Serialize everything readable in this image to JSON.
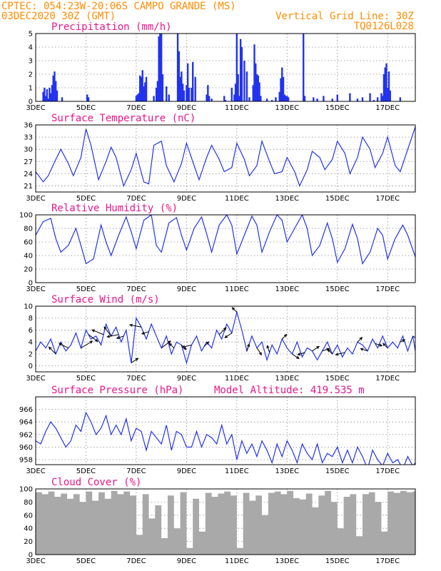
{
  "header": {
    "line1_left": "CPTEC:  054:23W-20:06S  CAMPO GRANDE (MS)",
    "line2_left": "03DEC2020 30Z (GMT)",
    "line2_right": "Vertical Grid Line: 30Z",
    "line3_right": "TQ0126L028"
  },
  "colors": {
    "header": "#ff8c00",
    "panel_title": "#e8178a",
    "series": "#2233ee",
    "cloud": "#a9a9a9"
  },
  "chart_data": [
    {
      "type": "bar",
      "title": "Precipitation (mm/h)",
      "ylim": [
        0,
        5
      ],
      "yticks": [
        "0",
        "1",
        "2",
        "3",
        "4",
        "5"
      ],
      "x_range_days": [
        3,
        18.1
      ],
      "xticks": [
        "3DEC",
        "5DEC",
        "7DEC",
        "9DEC",
        "11DEC",
        "13DEC",
        "15DEC",
        "17DEC"
      ],
      "grid": true,
      "x": [
        3.3,
        3.35,
        3.4,
        3.45,
        3.5,
        3.55,
        3.6,
        3.65,
        3.7,
        3.75,
        3.8,
        3.85,
        4.05,
        5.05,
        5.1,
        7.0,
        7.05,
        7.1,
        7.15,
        7.2,
        7.25,
        7.3,
        7.35,
        7.4,
        7.7,
        7.8,
        7.85,
        7.9,
        7.95,
        8.0,
        8.05,
        8.2,
        8.3,
        8.65,
        8.7,
        8.75,
        8.8,
        8.85,
        8.9,
        9.0,
        9.05,
        9.1,
        9.2,
        9.25,
        9.35,
        9.8,
        9.85,
        9.9,
        10.0,
        10.5,
        10.55,
        10.8,
        10.9,
        10.95,
        11.0,
        11.05,
        11.1,
        11.15,
        11.2,
        11.3,
        11.4,
        11.5,
        11.65,
        11.7,
        11.75,
        11.8,
        11.85,
        11.9,
        11.95,
        12.2,
        12.4,
        12.55,
        12.7,
        12.75,
        12.8,
        12.85,
        12.9,
        12.95,
        13.0,
        13.05,
        13.65,
        13.7,
        14.05,
        14.2,
        14.45,
        14.8,
        15.0,
        15.5,
        15.8,
        16.0,
        16.3,
        16.45,
        16.6,
        16.75,
        16.8,
        16.85,
        16.9,
        16.95,
        17.0,
        17.05,
        17.1,
        17.5
      ],
      "values": [
        0.7,
        1.0,
        0.4,
        0.9,
        0.2,
        1.0,
        0.6,
        1.2,
        1.9,
        2.2,
        1.5,
        0.8,
        0.3,
        0.5,
        0.3,
        0.4,
        0.5,
        0.6,
        1.9,
        1.8,
        2.3,
        1.1,
        1.4,
        1.8,
        0.4,
        1.0,
        1.5,
        4.8,
        5.0,
        5.0,
        2.0,
        1.1,
        0.5,
        5.0,
        3.7,
        1.8,
        2.2,
        1.3,
        0.8,
        1.2,
        2.8,
        1.0,
        1.0,
        2.9,
        1.8,
        0.5,
        1.2,
        0.4,
        0.2,
        0.4,
        0.1,
        1.0,
        0.5,
        1.3,
        5.0,
        2.0,
        0.4,
        4.6,
        4.0,
        3.0,
        2.2,
        0.3,
        1.2,
        4.2,
        2.8,
        2.0,
        1.9,
        1.4,
        0.4,
        0.2,
        0.1,
        0.3,
        0.7,
        1.7,
        2.5,
        1.8,
        0.5,
        0.4,
        0.4,
        0.3,
        5.0,
        0.4,
        0.3,
        0.2,
        0.4,
        0.2,
        0.5,
        0.6,
        0.2,
        0.3,
        0.6,
        0.1,
        0.3,
        0.6,
        0.4,
        2.0,
        2.5,
        2.8,
        1.0,
        2.2,
        0.8,
        0.3
      ]
    },
    {
      "type": "line",
      "title": "Surface Temperature (nC)",
      "ylim": [
        19.5,
        36
      ],
      "yticks": [
        "21",
        "24",
        "27",
        "30",
        "33",
        "36"
      ],
      "x_range_days": [
        3,
        18.1
      ],
      "xticks": [
        "3DEC",
        "5DEC",
        "7DEC",
        "9DEC",
        "11DEC",
        "13DEC",
        "15DEC",
        "17DEC"
      ],
      "grid": true,
      "x": [
        3.0,
        3.3,
        3.5,
        3.8,
        4.0,
        4.3,
        4.5,
        4.8,
        5.0,
        5.2,
        5.5,
        5.8,
        6.0,
        6.2,
        6.5,
        6.8,
        7.0,
        7.3,
        7.5,
        7.7,
        8.0,
        8.2,
        8.5,
        8.8,
        9.0,
        9.3,
        9.5,
        9.8,
        10.0,
        10.3,
        10.5,
        10.8,
        11.0,
        11.3,
        11.5,
        11.8,
        12.0,
        12.3,
        12.5,
        12.8,
        13.0,
        13.3,
        13.5,
        13.8,
        14.0,
        14.3,
        14.5,
        14.8,
        15.0,
        15.3,
        15.5,
        15.8,
        16.0,
        16.3,
        16.5,
        16.8,
        17.0,
        17.3,
        17.5,
        17.8,
        18.1
      ],
      "values": [
        24.5,
        22.0,
        23.5,
        27.5,
        30.0,
        26.5,
        23.5,
        28.0,
        35.0,
        31.0,
        22.5,
        27.0,
        30.5,
        28.0,
        21.0,
        25.0,
        29.0,
        22.0,
        21.5,
        31.0,
        32.0,
        26.0,
        22.0,
        26.5,
        31.5,
        26.0,
        22.5,
        28.0,
        31.0,
        27.5,
        24.5,
        25.5,
        31.5,
        27.5,
        23.5,
        26.0,
        32.0,
        27.0,
        24.0,
        24.5,
        28.0,
        24.5,
        21.0,
        25.0,
        29.5,
        28.0,
        25.0,
        27.5,
        32.0,
        29.0,
        24.0,
        28.0,
        33.0,
        30.0,
        25.5,
        29.0,
        33.0,
        26.0,
        24.5,
        30.0,
        35.5
      ]
    },
    {
      "type": "line",
      "title": "Relative Humidity (%)",
      "ylim": [
        0,
        100
      ],
      "yticks": [
        "0",
        "20",
        "40",
        "60",
        "80",
        "100"
      ],
      "x_range_days": [
        3,
        18.1
      ],
      "xticks": [
        "3DEC",
        "5DEC",
        "7DEC",
        "9DEC",
        "11DEC",
        "13DEC",
        "15DEC",
        "17DEC"
      ],
      "grid": true,
      "x": [
        3.0,
        3.3,
        3.6,
        3.8,
        4.0,
        4.3,
        4.6,
        4.8,
        5.0,
        5.3,
        5.6,
        5.8,
        6.0,
        6.3,
        6.6,
        6.8,
        7.0,
        7.3,
        7.6,
        7.8,
        8.0,
        8.3,
        8.6,
        8.8,
        9.0,
        9.3,
        9.6,
        9.8,
        10.0,
        10.3,
        10.6,
        10.8,
        11.0,
        11.3,
        11.6,
        11.8,
        12.0,
        12.3,
        12.6,
        12.8,
        13.0,
        13.3,
        13.6,
        13.8,
        14.0,
        14.3,
        14.6,
        14.8,
        15.0,
        15.3,
        15.6,
        15.8,
        16.0,
        16.3,
        16.6,
        16.8,
        17.0,
        17.3,
        17.6,
        17.8,
        18.1
      ],
      "values": [
        70.0,
        90.0,
        95.0,
        65.0,
        45.0,
        55.0,
        80.0,
        55.0,
        28.0,
        35.0,
        85.0,
        60.0,
        40.0,
        70.0,
        97.0,
        75.0,
        50.0,
        92.0,
        100.0,
        55.0,
        45.0,
        88.0,
        96.0,
        70.0,
        48.0,
        80.0,
        97.0,
        72.0,
        45.0,
        85.0,
        100.0,
        85.0,
        42.0,
        70.0,
        98.0,
        85.0,
        45.0,
        75.0,
        100.0,
        92.0,
        60.0,
        80.0,
        100.0,
        80.0,
        40.0,
        55.0,
        88.0,
        65.0,
        30.0,
        50.0,
        86.0,
        65.0,
        28.0,
        45.0,
        80.0,
        70.0,
        35.0,
        65.0,
        85.0,
        70.0,
        38.0
      ]
    },
    {
      "type": "line",
      "title": "Surface Wind (m/s)",
      "ylim": [
        -1,
        10
      ],
      "yticks": [
        "0",
        "2",
        "4",
        "6",
        "8",
        "10"
      ],
      "x_range_days": [
        3,
        18.1
      ],
      "xticks": [
        "3DEC",
        "5DEC",
        "7DEC",
        "9DEC",
        "11DEC",
        "13DEC",
        "15DEC",
        "17DEC"
      ],
      "grid": true,
      "x": [
        3.0,
        3.2,
        3.4,
        3.6,
        3.8,
        4.0,
        4.2,
        4.4,
        4.6,
        4.8,
        5.0,
        5.2,
        5.4,
        5.6,
        5.8,
        6.0,
        6.2,
        6.4,
        6.6,
        6.8,
        7.0,
        7.2,
        7.4,
        7.6,
        7.8,
        8.0,
        8.2,
        8.4,
        8.6,
        8.8,
        9.0,
        9.2,
        9.4,
        9.6,
        9.8,
        10.0,
        10.2,
        10.4,
        10.6,
        10.8,
        11.0,
        11.2,
        11.4,
        11.6,
        11.8,
        12.0,
        12.2,
        12.4,
        12.6,
        12.8,
        13.0,
        13.2,
        13.4,
        13.6,
        13.8,
        14.0,
        14.2,
        14.4,
        14.6,
        14.8,
        15.0,
        15.2,
        15.4,
        15.6,
        15.8,
        16.0,
        16.2,
        16.4,
        16.6,
        16.8,
        17.0,
        17.2,
        17.4,
        17.6,
        17.8,
        18.0,
        18.1
      ],
      "values": [
        2.5,
        4.0,
        3.0,
        4.5,
        2.0,
        4.0,
        2.5,
        3.5,
        5.5,
        3.0,
        6.0,
        4.5,
        5.0,
        3.5,
        7.0,
        5.0,
        6.5,
        4.0,
        6.0,
        0.5,
        8.0,
        6.5,
        4.5,
        7.0,
        5.0,
        3.0,
        5.0,
        2.0,
        4.0,
        3.5,
        0.5,
        3.5,
        5.0,
        2.5,
        4.0,
        3.0,
        6.0,
        4.5,
        7.0,
        5.5,
        9.0,
        6.0,
        2.5,
        5.0,
        3.0,
        4.0,
        1.0,
        3.5,
        2.0,
        4.5,
        3.0,
        2.0,
        4.0,
        1.5,
        3.0,
        2.5,
        1.0,
        2.5,
        4.0,
        2.0,
        3.5,
        1.5,
        3.0,
        2.0,
        4.0,
        3.5,
        2.5,
        4.5,
        3.0,
        5.0,
        3.0,
        4.0,
        3.0,
        5.0,
        2.5,
        5.0,
        2.5
      ],
      "arrows": [
        {
          "x": 3.8,
          "u": -3,
          "v": 3
        },
        {
          "x": 4.3,
          "u": -4,
          "v": 2
        },
        {
          "x": 4.8,
          "u": 5,
          "v": 3
        },
        {
          "x": 5.1,
          "u": 4,
          "v": -3
        },
        {
          "x": 5.7,
          "u": -5,
          "v": 2
        },
        {
          "x": 6.0,
          "u": -3,
          "v": 4
        },
        {
          "x": 6.3,
          "u": -5,
          "v": -1
        },
        {
          "x": 6.5,
          "u": -3,
          "v": -1
        },
        {
          "x": 6.8,
          "u": 3,
          "v": 2
        },
        {
          "x": 7.2,
          "u": -5,
          "v": 1
        },
        {
          "x": 7.5,
          "u": -3,
          "v": -1
        },
        {
          "x": 8.0,
          "u": 4,
          "v": 3
        },
        {
          "x": 8.5,
          "u": -2,
          "v": 2
        },
        {
          "x": 8.8,
          "u": 2,
          "v": -2
        },
        {
          "x": 9.2,
          "u": -4,
          "v": -1
        },
        {
          "x": 9.7,
          "u": 2,
          "v": 2
        },
        {
          "x": 10.3,
          "u": 3,
          "v": 3
        },
        {
          "x": 10.8,
          "u": -3,
          "v": -2
        },
        {
          "x": 11.0,
          "u": -2,
          "v": 2
        },
        {
          "x": 11.4,
          "u": 1,
          "v": 3
        },
        {
          "x": 11.8,
          "u": 2,
          "v": -3
        },
        {
          "x": 12.3,
          "u": -1,
          "v": 3
        },
        {
          "x": 12.8,
          "u": 2,
          "v": 2
        },
        {
          "x": 13.2,
          "u": 3,
          "v": -2
        },
        {
          "x": 13.7,
          "u": -3,
          "v": -1
        },
        {
          "x": 14.0,
          "u": 3,
          "v": 2
        },
        {
          "x": 14.4,
          "u": 3,
          "v": 1
        },
        {
          "x": 14.8,
          "u": -2,
          "v": 2
        },
        {
          "x": 15.3,
          "u": -4,
          "v": -1
        },
        {
          "x": 15.8,
          "u": 2,
          "v": 2
        },
        {
          "x": 16.2,
          "u": -3,
          "v": 1
        },
        {
          "x": 16.5,
          "u": 3,
          "v": -1
        },
        {
          "x": 17.0,
          "u": -2,
          "v": 2
        },
        {
          "x": 17.5,
          "u": 2,
          "v": 1
        },
        {
          "x": 18.0,
          "u": 3,
          "v": -2
        }
      ]
    },
    {
      "type": "line",
      "title": "Surface Pressure (hPa)",
      "annotation": "Model Altitude: 419.535  m",
      "ylim": [
        957.2,
        968
      ],
      "yticks": [
        "958",
        "960",
        "962",
        "964",
        "966"
      ],
      "x_range_days": [
        3,
        18.1
      ],
      "xticks": [
        "3DEC",
        "5DEC",
        "7DEC",
        "9DEC",
        "11DEC",
        "13DEC",
        "15DEC",
        "17DEC"
      ],
      "grid": true,
      "x": [
        3.0,
        3.2,
        3.4,
        3.6,
        3.8,
        4.0,
        4.2,
        4.4,
        4.6,
        4.8,
        5.0,
        5.2,
        5.4,
        5.6,
        5.8,
        6.0,
        6.2,
        6.4,
        6.6,
        6.8,
        7.0,
        7.2,
        7.4,
        7.6,
        7.8,
        8.0,
        8.2,
        8.4,
        8.6,
        8.8,
        9.0,
        9.2,
        9.4,
        9.6,
        9.8,
        10.0,
        10.2,
        10.4,
        10.6,
        10.8,
        11.0,
        11.2,
        11.4,
        11.6,
        11.8,
        12.0,
        12.2,
        12.4,
        12.6,
        12.8,
        13.0,
        13.2,
        13.4,
        13.6,
        13.8,
        14.0,
        14.2,
        14.4,
        14.6,
        14.8,
        15.0,
        15.2,
        15.4,
        15.6,
        15.8,
        16.0,
        16.2,
        16.4,
        16.6,
        16.8,
        17.0,
        17.2,
        17.4,
        17.6,
        17.8,
        18.0,
        18.1
      ],
      "values": [
        961.0,
        960.5,
        962.5,
        964.0,
        963.0,
        961.5,
        960.0,
        961.0,
        963.5,
        962.5,
        965.5,
        964.0,
        962.0,
        963.0,
        965.0,
        962.0,
        963.5,
        962.0,
        964.5,
        961.0,
        963.0,
        962.5,
        959.5,
        962.5,
        961.5,
        960.5,
        963.5,
        959.5,
        962.5,
        962.0,
        960.0,
        960.0,
        962.5,
        960.0,
        962.0,
        961.5,
        960.5,
        963.5,
        960.5,
        962.0,
        958.0,
        961.0,
        959.0,
        960.5,
        958.5,
        961.0,
        959.5,
        957.5,
        960.5,
        958.5,
        961.0,
        959.5,
        957.5,
        960.5,
        959.0,
        958.0,
        960.5,
        957.5,
        959.0,
        958.5,
        960.0,
        957.5,
        959.5,
        957.5,
        960.0,
        958.5,
        956.5,
        959.5,
        958.0,
        957.0,
        959.0,
        957.5,
        958.0,
        956.5,
        958.5,
        957.0,
        957.5
      ]
    },
    {
      "type": "bar",
      "title": "Cloud Cover (%)",
      "ylim": [
        0,
        100
      ],
      "yticks": [
        "0",
        "20",
        "40",
        "60",
        "80",
        "100"
      ],
      "x_range_days": [
        3,
        18.1
      ],
      "xticks": [
        "3DEC",
        "5DEC",
        "7DEC",
        "9DEC",
        "11DEC",
        "13DEC",
        "15DEC",
        "17DEC"
      ],
      "grid": true,
      "x": [
        3.0,
        3.25,
        3.5,
        3.75,
        4.0,
        4.25,
        4.5,
        4.75,
        5.0,
        5.25,
        5.5,
        5.75,
        6.0,
        6.25,
        6.5,
        6.75,
        7.0,
        7.25,
        7.5,
        7.75,
        8.0,
        8.25,
        8.5,
        8.75,
        9.0,
        9.25,
        9.5,
        9.75,
        10.0,
        10.25,
        10.5,
        10.75,
        11.0,
        11.25,
        11.5,
        11.75,
        12.0,
        12.25,
        12.5,
        12.75,
        13.0,
        13.25,
        13.5,
        13.75,
        14.0,
        14.25,
        14.5,
        14.75,
        15.0,
        15.25,
        15.5,
        15.75,
        16.0,
        16.25,
        16.5,
        16.75,
        17.0,
        17.25,
        17.5,
        17.75,
        18.0
      ],
      "values": [
        95.0,
        92.0,
        96.0,
        88.0,
        93.0,
        85.0,
        92.0,
        80.0,
        96.0,
        82.0,
        95.0,
        85.0,
        97.0,
        92.0,
        96.0,
        90.0,
        30.0,
        92.0,
        55.0,
        75.0,
        25.0,
        90.0,
        40.0,
        95.0,
        10.0,
        85.0,
        35.0,
        94.0,
        88.0,
        93.0,
        96.0,
        90.0,
        10.0,
        94.0,
        82.0,
        90.0,
        60.0,
        94.0,
        96.0,
        92.0,
        97.0,
        86.0,
        84.0,
        93.0,
        72.0,
        90.0,
        97.0,
        80.0,
        40.0,
        88.0,
        92.0,
        28.0,
        92.0,
        95.0,
        80.0,
        35.0,
        96.0,
        94.0,
        97.0,
        95.0,
        96.0
      ]
    }
  ]
}
